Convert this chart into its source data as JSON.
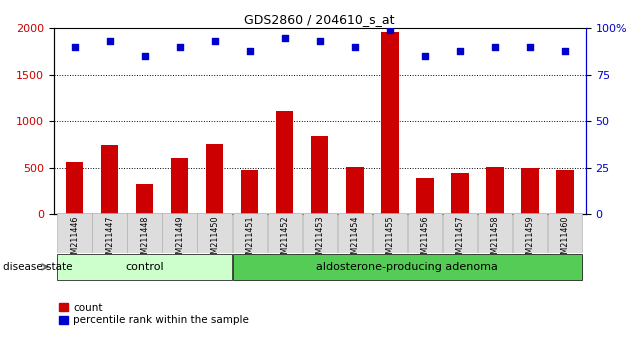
{
  "title": "GDS2860 / 204610_s_at",
  "categories": [
    "GSM211446",
    "GSM211447",
    "GSM211448",
    "GSM211449",
    "GSM211450",
    "GSM211451",
    "GSM211452",
    "GSM211453",
    "GSM211454",
    "GSM211455",
    "GSM211456",
    "GSM211457",
    "GSM211458",
    "GSM211459",
    "GSM211460"
  ],
  "counts": [
    560,
    740,
    330,
    600,
    760,
    470,
    1110,
    840,
    510,
    1960,
    390,
    440,
    510,
    500,
    470
  ],
  "percentiles": [
    90,
    93,
    85,
    90,
    93,
    88,
    95,
    93,
    90,
    99,
    85,
    88,
    90,
    90,
    88
  ],
  "bar_color": "#cc0000",
  "dot_color": "#0000cc",
  "ylim_left": [
    0,
    2000
  ],
  "ylim_right": [
    0,
    100
  ],
  "yticks_left": [
    0,
    500,
    1000,
    1500,
    2000
  ],
  "yticks_right": [
    0,
    25,
    50,
    75,
    100
  ],
  "grid_values": [
    500,
    1000,
    1500
  ],
  "control_count": 5,
  "adenoma_count": 10,
  "control_label": "control",
  "adenoma_label": "aldosterone-producing adenoma",
  "disease_state_label": "disease state",
  "legend_count": "count",
  "legend_percentile": "percentile rank within the sample",
  "control_color": "#ccffcc",
  "adenoma_color": "#55cc55",
  "tick_bg_color": "#dddddd",
  "tick_border_color": "#aaaaaa",
  "bar_width": 0.5,
  "left_yaxis_color": "#cc0000",
  "right_yaxis_color": "#0000cc",
  "dot_size": 25
}
